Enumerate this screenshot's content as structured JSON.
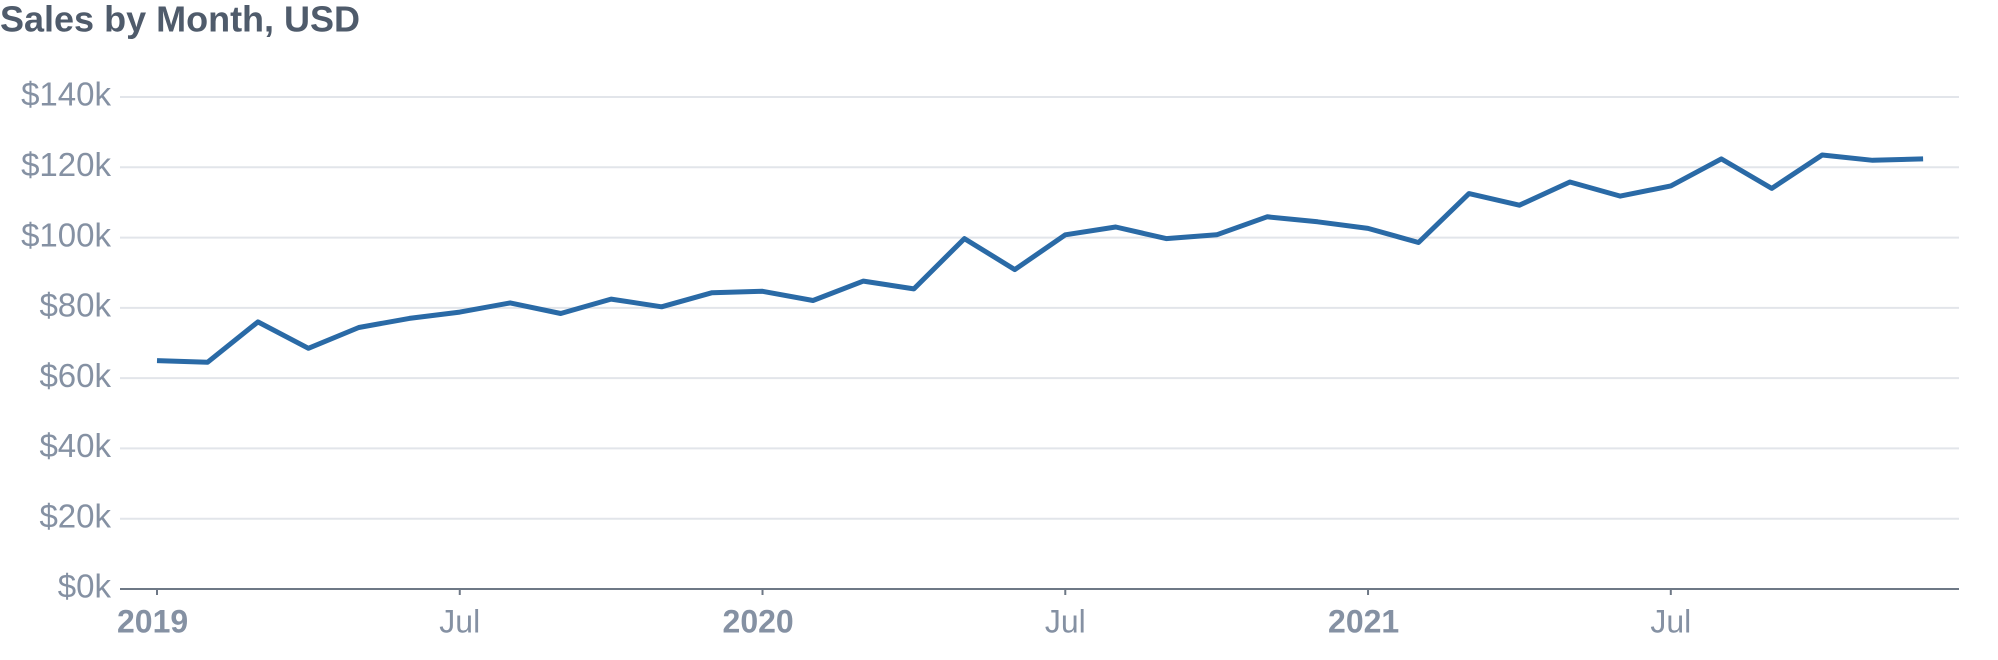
{
  "chart_data": {
    "type": "line",
    "title": "Sales by Month, USD",
    "x": [
      "2019-01",
      "2019-02",
      "2019-03",
      "2019-04",
      "2019-05",
      "2019-06",
      "2019-07",
      "2019-08",
      "2019-09",
      "2019-10",
      "2019-11",
      "2019-12",
      "2020-01",
      "2020-02",
      "2020-03",
      "2020-04",
      "2020-05",
      "2020-06",
      "2020-07",
      "2020-08",
      "2020-09",
      "2020-10",
      "2020-11",
      "2020-12",
      "2021-01",
      "2021-02",
      "2021-03",
      "2021-04",
      "2021-05",
      "2021-06",
      "2021-07",
      "2021-08",
      "2021-09",
      "2021-10",
      "2021-11",
      "2021-12"
    ],
    "series": [
      {
        "name": "Sales",
        "color": "#2a6aa6",
        "values": [
          65000,
          64500,
          76000,
          68500,
          74400,
          77000,
          78800,
          81400,
          78400,
          82500,
          80300,
          84300,
          84700,
          82100,
          87600,
          85400,
          99700,
          90900,
          100800,
          103000,
          99700,
          100800,
          105900,
          104500,
          102600,
          98600,
          112500,
          109200,
          115800,
          111800,
          114700,
          122400,
          114000,
          123500,
          122000,
          122400
        ]
      }
    ],
    "xticks": [
      {
        "value": "2019-01",
        "label": "2019"
      },
      {
        "value": "2019-07",
        "label": "Jul"
      },
      {
        "value": "2020-01",
        "label": "2020"
      },
      {
        "value": "2020-07",
        "label": "Jul"
      },
      {
        "value": "2021-01",
        "label": "2021"
      },
      {
        "value": "2021-07",
        "label": "Jul"
      }
    ],
    "ylim": [
      0,
      140000
    ],
    "yticks": [
      {
        "value": 0,
        "label": "$0k"
      },
      {
        "value": 20000,
        "label": "$20k"
      },
      {
        "value": 40000,
        "label": "$40k"
      },
      {
        "value": 60000,
        "label": "$60k"
      },
      {
        "value": 80000,
        "label": "$80k"
      },
      {
        "value": 100000,
        "label": "$100k"
      },
      {
        "value": 120000,
        "label": "$120k"
      },
      {
        "value": 140000,
        "label": "$140k"
      }
    ],
    "grid": true
  }
}
